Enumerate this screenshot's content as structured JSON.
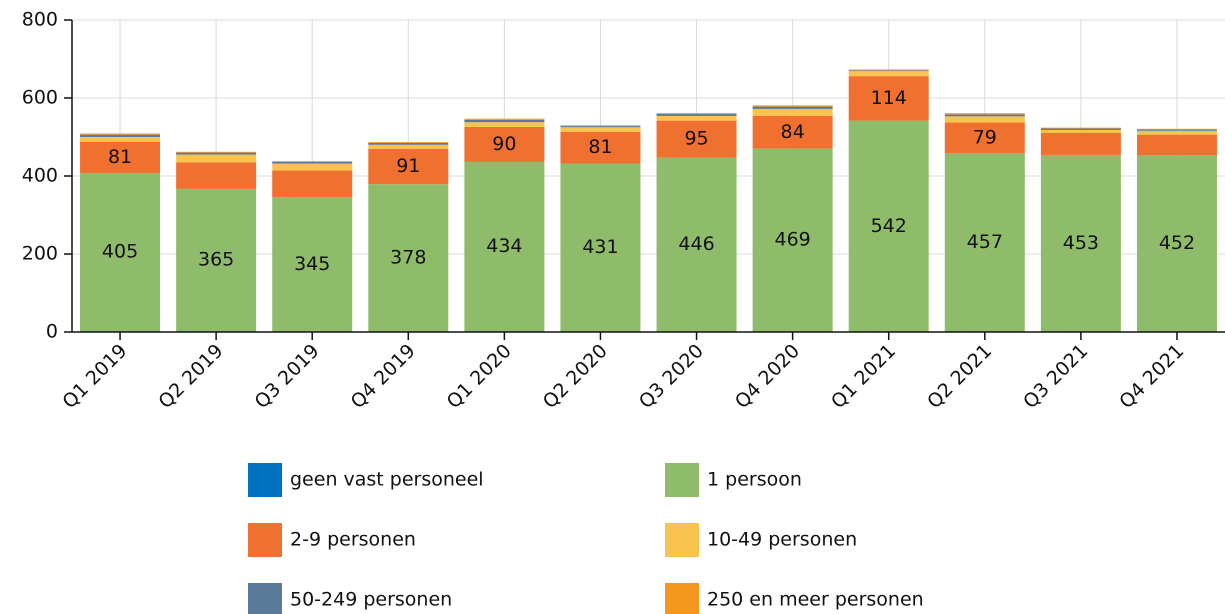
{
  "chart_data": {
    "type": "stacked_bar",
    "categories": [
      "Q1 2019",
      "Q2 2019",
      "Q3 2019",
      "Q4 2019",
      "Q1 2020",
      "Q2 2020",
      "Q3 2020",
      "Q4 2020",
      "Q1 2021",
      "Q2 2021",
      "Q3 2021",
      "Q4 2021"
    ],
    "series": [
      {
        "name": "geen vast personeel",
        "color": "#0070c0",
        "values": [
          2,
          2,
          1,
          1,
          2,
          1,
          1,
          1,
          0,
          1,
          1,
          1
        ]
      },
      {
        "name": "1 persoon",
        "color": "#8fbc6a",
        "values": [
          405,
          365,
          345,
          378,
          434,
          431,
          446,
          469,
          542,
          457,
          453,
          452
        ],
        "value_labels": [
          "405",
          "365",
          "345",
          "378",
          "434",
          "431",
          "446",
          "469",
          "542",
          "457",
          "453",
          "452"
        ]
      },
      {
        "name": "2-9 personen",
        "color": "#f07030",
        "values": [
          81,
          68,
          68,
          91,
          90,
          81,
          95,
          84,
          114,
          79,
          57,
          53
        ],
        "value_labels": [
          "81",
          null,
          null,
          "91",
          "90",
          "81",
          "95",
          "84",
          "114",
          "79",
          null,
          null
        ]
      },
      {
        "name": "10-49 personen",
        "color": "#f9c350",
        "values": [
          12,
          20,
          18,
          10,
          12,
          12,
          12,
          18,
          13,
          16,
          7,
          10
        ]
      },
      {
        "name": "50-249 personen",
        "color": "#5a7a99",
        "values": [
          6,
          5,
          4,
          5,
          6,
          3,
          5,
          6,
          2,
          5,
          4,
          3
        ]
      },
      {
        "name": "250 en meer personen",
        "color": "#f5961e",
        "values": [
          3,
          2,
          2,
          2,
          3,
          2,
          2,
          3,
          2,
          3,
          2,
          2
        ]
      }
    ],
    "ylim": [
      0,
      800
    ],
    "yticks": [
      0,
      200,
      400,
      600,
      800
    ],
    "grid": true
  }
}
